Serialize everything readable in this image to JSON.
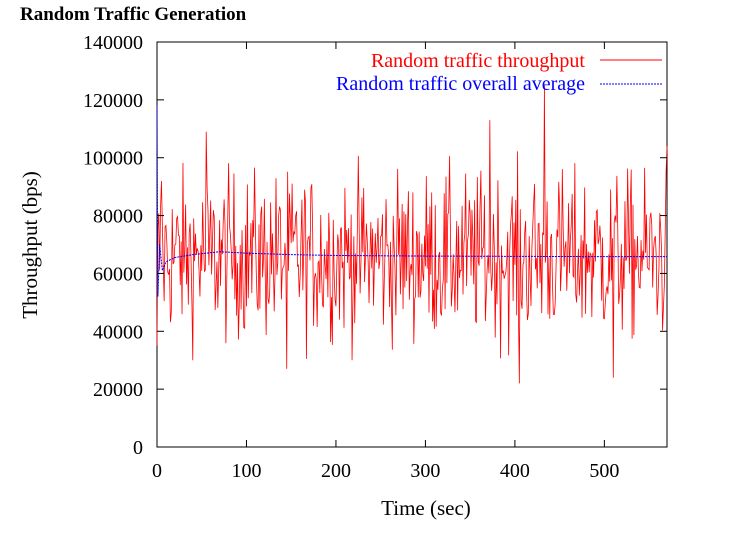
{
  "page": {
    "title": "Random Traffic Generation"
  },
  "chart_data": {
    "type": "line",
    "title": "Random Traffic Generation",
    "xlabel": "Time (sec)",
    "ylabel": "Throughput (bps)",
    "xlim": [
      0,
      570
    ],
    "ylim": [
      0,
      140000
    ],
    "x_ticks": [
      0,
      100,
      200,
      300,
      400,
      500
    ],
    "y_ticks": [
      0,
      20000,
      40000,
      60000,
      80000,
      100000,
      120000,
      140000
    ],
    "x_tick_labels": [
      "0",
      "100",
      "200",
      "300",
      "400",
      "500"
    ],
    "y_tick_labels": [
      "0",
      "20000",
      "40000",
      "60000",
      "80000",
      "100000",
      "120000",
      "140000"
    ],
    "grid": false,
    "legend_position": "top-right",
    "series": [
      {
        "name": "Random traffic throughput",
        "color": "#ff0000",
        "sample_interval_sec": 1,
        "mean": 66000,
        "std_dev": 14000,
        "min": 22000,
        "max": 125000,
        "notable_points": [
          {
            "x": 0,
            "y": 35000
          },
          {
            "x": 5,
            "y": 92000
          },
          {
            "x": 55,
            "y": 109000
          },
          {
            "x": 145,
            "y": 27000
          },
          {
            "x": 372,
            "y": 113000
          },
          {
            "x": 405,
            "y": 22000
          },
          {
            "x": 433,
            "y": 125000
          },
          {
            "x": 510,
            "y": 24000
          },
          {
            "x": 570,
            "y": 104000
          }
        ]
      },
      {
        "name": "Random traffic overall average",
        "color": "#0000ff",
        "points": [
          {
            "x": 0,
            "y": 118000
          },
          {
            "x": 1,
            "y": 52000
          },
          {
            "x": 3,
            "y": 70000
          },
          {
            "x": 6,
            "y": 61000
          },
          {
            "x": 10,
            "y": 64000
          },
          {
            "x": 20,
            "y": 65500
          },
          {
            "x": 40,
            "y": 66500
          },
          {
            "x": 70,
            "y": 67500
          },
          {
            "x": 100,
            "y": 67000
          },
          {
            "x": 150,
            "y": 66500
          },
          {
            "x": 200,
            "y": 66200
          },
          {
            "x": 300,
            "y": 66000
          },
          {
            "x": 400,
            "y": 65900
          },
          {
            "x": 500,
            "y": 65800
          },
          {
            "x": 570,
            "y": 65800
          }
        ]
      }
    ]
  }
}
